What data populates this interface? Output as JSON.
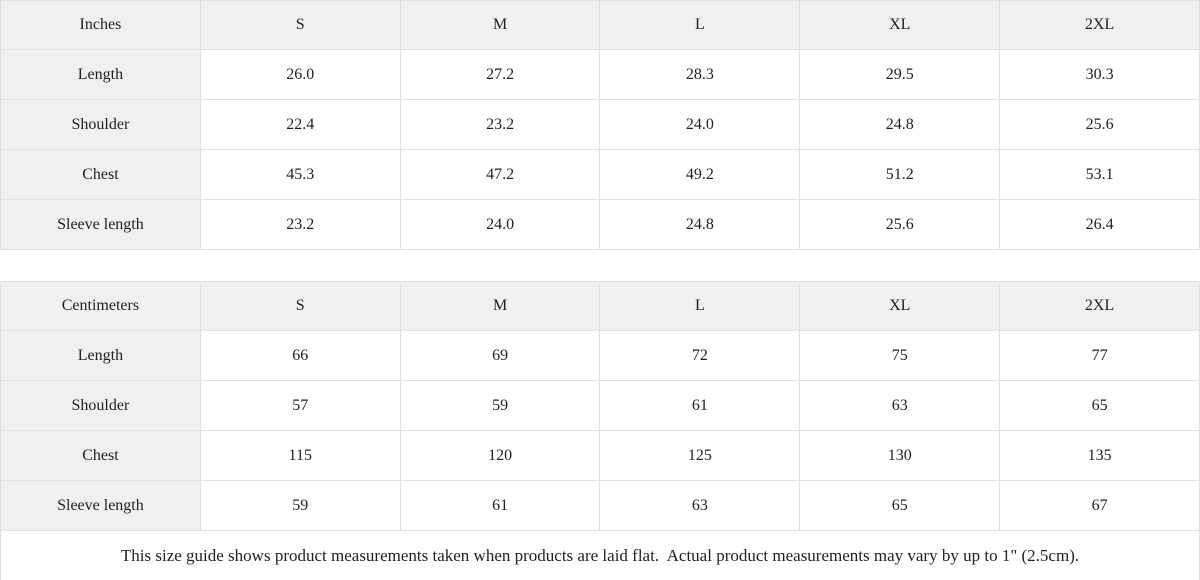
{
  "tables": [
    {
      "unit_label": "Inches",
      "sizes": [
        "S",
        "M",
        "L",
        "XL",
        "2XL"
      ],
      "rows": [
        {
          "label": "Length",
          "values": [
            "26.0",
            "27.2",
            "28.3",
            "29.5",
            "30.3"
          ]
        },
        {
          "label": "Shoulder",
          "values": [
            "22.4",
            "23.2",
            "24.0",
            "24.8",
            "25.6"
          ]
        },
        {
          "label": "Chest",
          "values": [
            "45.3",
            "47.2",
            "49.2",
            "51.2",
            "53.1"
          ]
        },
        {
          "label": "Sleeve length",
          "values": [
            "23.2",
            "24.0",
            "24.8",
            "25.6",
            "26.4"
          ]
        }
      ]
    },
    {
      "unit_label": "Centimeters",
      "sizes": [
        "S",
        "M",
        "L",
        "XL",
        "2XL"
      ],
      "rows": [
        {
          "label": "Length",
          "values": [
            "66",
            "69",
            "72",
            "75",
            "77"
          ]
        },
        {
          "label": "Shoulder",
          "values": [
            "57",
            "59",
            "61",
            "63",
            "65"
          ]
        },
        {
          "label": "Chest",
          "values": [
            "115",
            "120",
            "125",
            "130",
            "135"
          ]
        },
        {
          "label": "Sleeve length",
          "values": [
            "59",
            "61",
            "63",
            "65",
            "67"
          ]
        }
      ]
    }
  ],
  "footer": {
    "note": "This size guide shows product measurements taken when products are laid flat.  Actual product measurements may vary by up to 1\" (2.5cm)."
  },
  "colors": {
    "header_bg": "#f0f0f0",
    "cell_bg": "#ffffff",
    "border": "#e0e0e0",
    "text": "#1f1f1f"
  }
}
